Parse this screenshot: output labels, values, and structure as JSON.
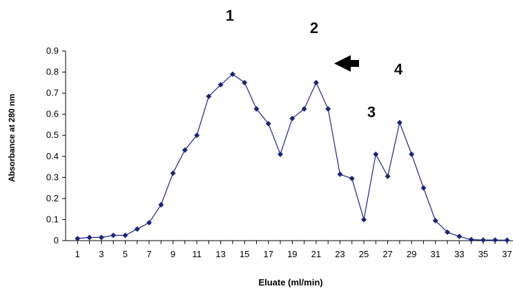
{
  "chart_data": {
    "type": "line",
    "title": "",
    "xlabel": "Eluate (ml/min)",
    "ylabel": "Absorbance at 280 nm",
    "ylim": [
      0,
      0.9
    ],
    "y_ticks": [
      "0",
      "0.1",
      "0.2",
      "0.3",
      "0.4",
      "0.5",
      "0.6",
      "0.7",
      "0.8",
      "0.9"
    ],
    "x_tick_labels": [
      "1",
      "3",
      "5",
      "7",
      "9",
      "11",
      "13",
      "15",
      "17",
      "19",
      "21",
      "23",
      "25",
      "27",
      "29",
      "31",
      "33",
      "35",
      "37"
    ],
    "grid": false,
    "legend": "none",
    "series_color": "#1f1f8f",
    "marker_color": "#1a237e",
    "x": [
      1,
      2,
      3,
      4,
      5,
      6,
      7,
      8,
      9,
      10,
      11,
      12,
      13,
      14,
      15,
      16,
      17,
      18,
      19,
      20,
      21,
      22,
      23,
      24,
      25,
      26,
      27,
      28,
      29,
      30,
      31,
      32,
      33,
      34,
      35,
      36,
      37
    ],
    "values": [
      0.01,
      0.015,
      0.015,
      0.025,
      0.025,
      0.055,
      0.085,
      0.17,
      0.32,
      0.43,
      0.5,
      0.685,
      0.74,
      0.79,
      0.75,
      0.625,
      0.555,
      0.41,
      0.58,
      0.625,
      0.75,
      0.625,
      0.315,
      0.295,
      0.1,
      0.41,
      0.305,
      0.56,
      0.41,
      0.25,
      0.095,
      0.04,
      0.02,
      0.005,
      0.003,
      0.003,
      0.002
    ],
    "annotations": [
      {
        "text": "1",
        "x": 14
      },
      {
        "text": "2",
        "x": 21
      },
      {
        "text": "3",
        "x": 26
      },
      {
        "text": "4",
        "x": 28
      }
    ],
    "arrow": {
      "direction": "left",
      "color": "#000000"
    }
  }
}
